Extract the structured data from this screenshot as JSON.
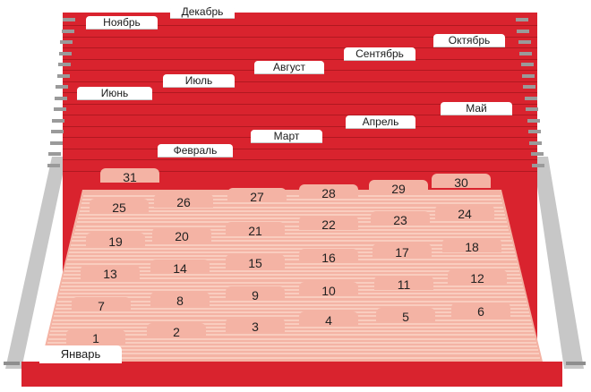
{
  "months": {
    "dec": "Декабрь",
    "nov": "Ноябрь",
    "oct": "Октябрь",
    "sep": "Сентябрь",
    "aug": "Август",
    "jul": "Июль",
    "jun": "Июнь",
    "may": "Май",
    "apr": "Апрель",
    "mar": "Март",
    "feb": "Февраль",
    "jan": "Январь"
  },
  "days": [
    "1",
    "2",
    "3",
    "4",
    "5",
    "6",
    "7",
    "8",
    "9",
    "10",
    "11",
    "12",
    "13",
    "14",
    "15",
    "16",
    "17",
    "18",
    "19",
    "20",
    "21",
    "22",
    "23",
    "24",
    "25",
    "26",
    "27",
    "28",
    "29",
    "30",
    "31"
  ],
  "colors": {
    "red": "#d9232e",
    "pink": "#f4b3a4",
    "tab": "#ffffff",
    "frame": "#bdbdbd"
  }
}
